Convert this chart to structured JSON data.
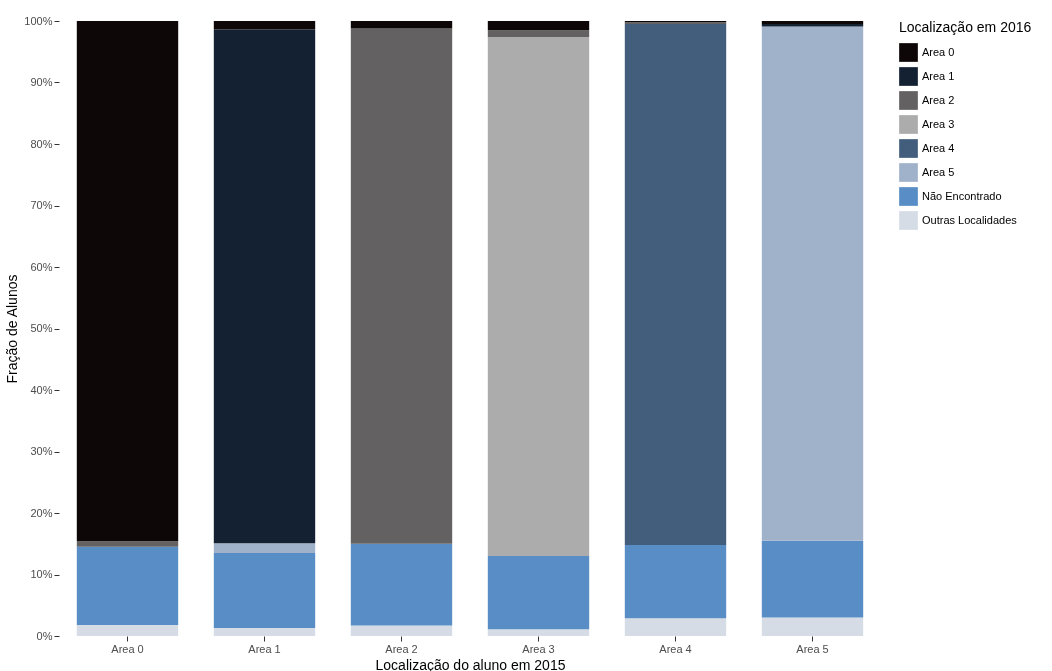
{
  "chart_data": {
    "type": "bar",
    "stacked": true,
    "xlabel": "Localização do aluno em 2015",
    "ylabel": "Fração de Alunos",
    "legend_title": "Localização em 2016",
    "legend": "right",
    "grid": false,
    "categories": [
      "Area 0",
      "Area 1",
      "Area 2",
      "Area 3",
      "Area 4",
      "Area 5"
    ],
    "ylim": [
      0,
      100
    ],
    "yticks": [
      {
        "value": 0,
        "label": "0%"
      },
      {
        "value": 10,
        "label": "10%"
      },
      {
        "value": 20,
        "label": "20%"
      },
      {
        "value": 30,
        "label": "30%"
      },
      {
        "value": 40,
        "label": "40%"
      },
      {
        "value": 50,
        "label": "50%"
      },
      {
        "value": 60,
        "label": "60%"
      },
      {
        "value": 70,
        "label": "70%"
      },
      {
        "value": 80,
        "label": "80%"
      },
      {
        "value": 90,
        "label": "90%"
      },
      {
        "value": 100,
        "label": "100%"
      }
    ],
    "series": [
      {
        "name": "Outras Localidades",
        "color": "#d5dce5",
        "values": [
          1.8,
          1.3,
          1.7,
          1.1,
          2.9,
          3.0
        ]
      },
      {
        "name": "Não Encontrado",
        "color": "#588dc5",
        "values": [
          12.7,
          12.2,
          13.3,
          11.9,
          11.9,
          12.5
        ]
      },
      {
        "name": "Area 5",
        "color": "#a0b2ca",
        "values": [
          0,
          1.6,
          0,
          0,
          0,
          83.6
        ]
      },
      {
        "name": "Area 4",
        "color": "#435e7c",
        "values": [
          0,
          0,
          0,
          0,
          84.7,
          0
        ]
      },
      {
        "name": "Area 3",
        "color": "#adacac",
        "values": [
          0,
          0,
          0,
          84.4,
          0,
          0
        ]
      },
      {
        "name": "Area 2",
        "color": "#636161",
        "values": [
          0.9,
          0,
          83.8,
          1.1,
          0.3,
          0
        ]
      },
      {
        "name": "Area 1",
        "color": "#132133",
        "values": [
          0,
          83.5,
          0,
          0,
          0,
          0.4
        ]
      },
      {
        "name": "Area 0",
        "color": "#0d0707",
        "values": [
          84.6,
          1.4,
          1.2,
          1.5,
          0.2,
          0.5
        ]
      }
    ]
  }
}
